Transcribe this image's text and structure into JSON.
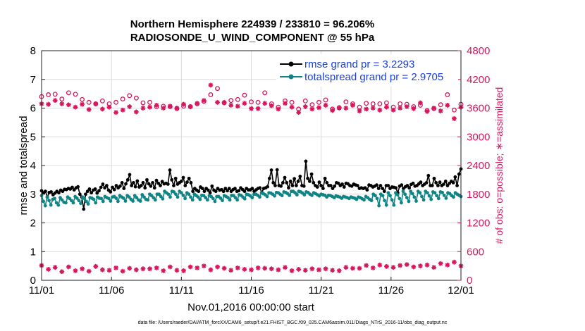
{
  "chart_data": {
    "type": "line",
    "title_line1": "Northern Hemisphere 224939 / 233810 = 96.206%",
    "title_line2": "RADIOSONDE_U_WIND_COMPONENT @ 55 hPa",
    "xlabel": "Nov.01,2016 00:00:00 start",
    "ylabel_left": "rmse and totalspread",
    "ylabel_right": "# of obs: o=possible; ∗=assimilated",
    "footnote": "data file: /Users/raeder/DAI/ATM_forcXX/CAM6_setup/f.e21.FHIST_BGC.f09_025.CAM6assim.011/Diags_NTrS_2016-11/obs_diag_output.nc",
    "x_ticks": [
      "11/01",
      "11/06",
      "11/11",
      "11/16",
      "11/21",
      "11/26",
      "12/01"
    ],
    "x_tick_days": [
      0,
      5,
      10,
      15,
      20,
      25,
      30
    ],
    "xlim": [
      0,
      30
    ],
    "ylim_left": [
      0,
      8
    ],
    "y_ticks_left": [
      "0",
      "1",
      "2",
      "3",
      "4",
      "5",
      "6",
      "7",
      "8"
    ],
    "ylim_right": [
      0,
      4800
    ],
    "y_ticks_right": [
      "0",
      "600",
      "1200",
      "1800",
      "2400",
      "3000",
      "3600",
      "4200",
      "4800"
    ],
    "colors": {
      "rmse": "#000000",
      "spread": "#0f8484",
      "obs": "#d6175e",
      "legend_text": "#1a3fe0"
    },
    "legend": [
      {
        "name": "rmse grand pr = 3.2293",
        "color": "#000000"
      },
      {
        "name": "totalspread grand pr = 2.9705",
        "color": "#0f8484"
      }
    ],
    "times_per_day": 4,
    "series": [
      {
        "name": "rmse",
        "axis": "left",
        "values": [
          3.12,
          3.05,
          3.1,
          2.9,
          3.06,
          3.08,
          2.98,
          3.04,
          3.1,
          3.05,
          3.14,
          3.1,
          3.17,
          3.16,
          3.2,
          3.18,
          3.24,
          3.15,
          3.22,
          3.26,
          3.0,
          2.9,
          2.48,
          3.0,
          3.1,
          3.18,
          3.05,
          3.14,
          3.18,
          3.04,
          3.12,
          3.24,
          3.35,
          3.22,
          3.3,
          3.14,
          3.08,
          3.24,
          3.16,
          3.3,
          3.22,
          3.28,
          3.4,
          3.2,
          3.36,
          3.5,
          3.68,
          3.3,
          3.4,
          3.26,
          3.46,
          3.25,
          3.3,
          3.4,
          3.22,
          3.5,
          3.36,
          3.28,
          3.4,
          3.22,
          3.48,
          3.38,
          3.3,
          3.44,
          3.36,
          3.38,
          3.35,
          3.84,
          3.5,
          3.3,
          3.55,
          3.35,
          3.4,
          3.45,
          3.58,
          3.3,
          3.42,
          3.55,
          3.4,
          3.1,
          3.2,
          3.14,
          3.1,
          3.25,
          3.2,
          3.1,
          3.2,
          3.14,
          3.05,
          3.28,
          3.14,
          3.1,
          3.2,
          3.14,
          3.16,
          3.1,
          3.2,
          3.12,
          3.2,
          3.1,
          3.16,
          3.2,
          3.1,
          3.12,
          3.22,
          3.16,
          3.1,
          3.2,
          3.15,
          3.15,
          3.2,
          3.1,
          3.15,
          3.2,
          3.22,
          3.06,
          3.2,
          3.22,
          3.26,
          3.55,
          3.84,
          3.4,
          3.3,
          3.85,
          3.3,
          3.28,
          3.4,
          3.58,
          3.4,
          3.22,
          3.45,
          3.3,
          3.54,
          3.3,
          3.45,
          3.62,
          3.3,
          3.28,
          4.15,
          3.55,
          3.45,
          3.7,
          3.4,
          3.3,
          3.25,
          3.42,
          3.3,
          3.2,
          3.55,
          3.4,
          3.3,
          3.3,
          3.2,
          3.28,
          3.4,
          3.38,
          3.3,
          3.35,
          3.25,
          3.38,
          3.36,
          3.3,
          3.28,
          3.35,
          3.32,
          3.3,
          3.2,
          3.22,
          3.2,
          3.22,
          3.15,
          3.32,
          3.3,
          3.25,
          3.28,
          3.32,
          3.2,
          3.3,
          3.2,
          3.1,
          3.3,
          3.3,
          3.2,
          3.25,
          3.24,
          3.22,
          3.05,
          3.28,
          3.32,
          3.2,
          3.26,
          3.3,
          3.22,
          3.34,
          3.38,
          3.28,
          3.3,
          3.36,
          3.42,
          3.3,
          3.35,
          3.4,
          3.65,
          3.3,
          3.3,
          3.55,
          3.4,
          3.3,
          3.42,
          3.3,
          3.35,
          3.45,
          3.3,
          3.38,
          3.45,
          3.4,
          3.6,
          3.3,
          3.7,
          3.88
        ]
      },
      {
        "name": "totalspread",
        "axis": "left",
        "values": [
          2.95,
          2.75,
          2.6,
          2.9,
          2.78,
          2.62,
          2.82,
          2.85,
          2.7,
          2.62,
          2.88,
          2.8,
          2.72,
          2.7,
          2.9,
          2.85,
          2.78,
          2.7,
          2.92,
          2.86,
          2.78,
          2.68,
          2.9,
          2.85,
          2.75,
          2.66,
          2.88,
          2.86,
          2.82,
          2.7,
          2.9,
          2.86,
          2.85,
          2.75,
          2.92,
          2.88,
          2.85,
          2.76,
          2.9,
          2.92,
          2.86,
          2.75,
          2.95,
          2.9,
          2.86,
          2.76,
          2.95,
          2.9,
          2.82,
          2.76,
          2.95,
          2.88,
          2.8,
          2.76,
          2.98,
          2.9,
          2.82,
          2.8,
          3.0,
          2.95,
          2.88,
          2.8,
          3.0,
          3.0,
          2.92,
          2.84,
          3.1,
          3.05,
          3.0,
          2.9,
          3.1,
          3.08,
          3.0,
          2.9,
          3.1,
          3.05,
          2.96,
          2.85,
          3.05,
          3.0,
          2.9,
          2.8,
          3.0,
          2.95,
          2.9,
          2.82,
          2.96,
          2.95,
          2.88,
          2.8,
          2.95,
          2.92,
          2.85,
          2.75,
          2.92,
          2.92,
          2.86,
          2.78,
          2.95,
          2.92,
          2.88,
          2.8,
          2.96,
          2.95,
          2.88,
          2.8,
          2.98,
          2.96,
          2.9,
          2.84,
          3.0,
          2.98,
          2.94,
          2.88,
          3.0,
          3.0,
          2.96,
          2.9,
          3.05,
          3.02,
          2.98,
          2.92,
          3.05,
          3.04,
          3.0,
          2.94,
          3.06,
          3.05,
          3.0,
          2.95,
          3.08,
          3.06,
          3.02,
          2.96,
          3.1,
          3.1,
          3.05,
          2.98,
          3.1,
          3.08,
          3.04,
          2.98,
          3.08,
          3.06,
          3.0,
          2.96,
          3.05,
          3.02,
          2.98,
          2.94,
          3.0,
          2.98,
          2.96,
          2.9,
          2.96,
          2.95,
          2.92,
          2.88,
          2.94,
          2.92,
          2.9,
          2.86,
          2.92,
          2.9,
          2.88,
          2.85,
          2.9,
          2.88,
          2.86,
          2.82,
          2.9,
          2.88,
          2.84,
          2.8,
          2.92,
          2.88,
          2.82,
          2.78,
          3.0,
          2.95,
          2.85,
          2.6,
          3.0,
          2.95,
          2.78,
          2.62,
          3.05,
          2.95,
          2.8,
          2.62,
          3.05,
          2.98,
          2.85,
          2.7,
          3.1,
          3.0,
          2.88,
          2.75,
          3.1,
          3.02,
          2.9,
          2.76,
          3.1,
          3.05,
          2.92,
          2.8,
          3.1,
          3.05,
          2.94,
          2.82,
          3.08,
          3.05,
          2.95,
          2.85,
          3.08,
          3.06,
          2.96,
          2.86,
          3.05,
          3.02,
          2.95,
          2.9,
          3.05,
          3.0,
          2.96,
          2.92
        ]
      },
      {
        "name": "obs_possible",
        "axis": "right",
        "marker": "circle",
        "values": [
          3840,
          3880,
          3890,
          3790,
          3920,
          3890,
          3780,
          3720,
          3690,
          3750,
          3690,
          3720,
          3790,
          3860,
          3810,
          3710,
          3720,
          3630,
          3640,
          3630,
          3590,
          3640,
          3630,
          3690,
          3740,
          3880,
          4010,
          3710,
          3760,
          3780,
          3870,
          3730,
          3720,
          3920,
          3690,
          3620,
          3750,
          3720,
          3580,
          3750,
          3670,
          3720,
          3770,
          3580,
          3610,
          3730,
          3690,
          3620,
          3700,
          3690,
          3690,
          3710,
          3620,
          3690,
          3680,
          3630,
          3660,
          3550,
          3590,
          3670,
          3880,
          3560,
          3680
        ]
      },
      {
        "name": "obs_assimilated",
        "axis": "right",
        "marker": "asterisk",
        "values": [
          3690,
          3680,
          3760,
          3690,
          3670,
          3620,
          3680,
          3570,
          3690,
          3580,
          3620,
          3510,
          3560,
          3630,
          3520,
          3600,
          3620,
          3660,
          3600,
          3640,
          3600,
          3680,
          3630,
          3700,
          3760,
          4080,
          3720,
          3720,
          3660,
          3640,
          3700,
          3590,
          3590,
          3700,
          3650,
          3580,
          3700,
          3620,
          3510,
          3630,
          3580,
          3610,
          3660,
          3550,
          3600,
          3600,
          3660,
          3540,
          3580,
          3600,
          3560,
          3620,
          3560,
          3600,
          3630,
          3590,
          3710,
          3530,
          3600,
          3540,
          3660,
          3380,
          3620
        ]
      },
      {
        "name": "obs_near_zero",
        "axis": "right",
        "marker": "asterisk",
        "values": [
          310,
          230,
          270,
          180,
          280,
          200,
          240,
          190,
          290,
          220,
          210,
          260,
          190,
          250,
          220,
          240,
          240,
          260,
          200,
          280,
          210,
          200,
          280,
          260,
          300,
          220,
          280,
          250,
          210,
          260,
          230,
          220,
          260,
          250,
          240,
          220,
          270,
          200,
          230,
          210,
          240,
          220,
          240,
          210,
          200,
          270,
          250,
          250,
          310,
          260,
          320,
          290,
          270,
          310,
          330,
          280,
          300,
          320,
          270,
          350,
          320,
          380,
          300
        ]
      }
    ]
  }
}
